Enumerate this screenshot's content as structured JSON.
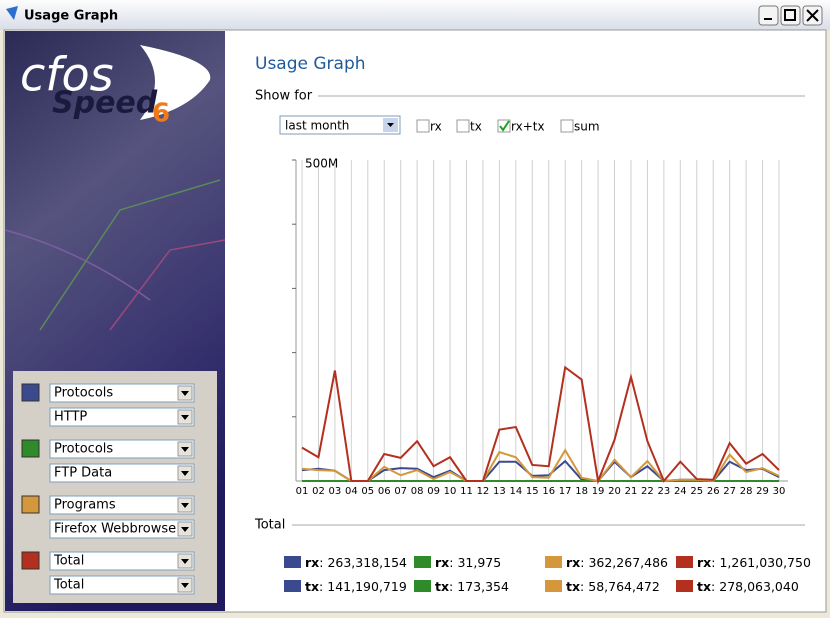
{
  "window": {
    "title": "Usage Graph"
  },
  "logo": {
    "brand": "cfos",
    "product": "Speed",
    "version": "6"
  },
  "filters": [
    {
      "group": "Protocols"
    },
    {
      "group": "Protocols"
    },
    {
      "group": "Programs"
    },
    {
      "group": "Total"
    }
  ],
  "page": {
    "heading": "Usage Graph",
    "show_for": "Show for",
    "period": "last month",
    "options": [
      {
        "label": "rx",
        "checked": false
      },
      {
        "label": "tx",
        "checked": false
      },
      {
        "label": "rx+tx",
        "checked": true
      },
      {
        "label": "sum",
        "checked": false
      }
    ],
    "total_heading": "Total",
    "rx_label": "rx",
    "tx_label": "tx",
    "separator": ":"
  },
  "totals": [
    {
      "rx": "263,318,154",
      "tx": "141,190,719"
    },
    {
      "rx": "31,975",
      "tx": "173,354"
    },
    {
      "rx": "362,267,486",
      "tx": "58,764,472"
    },
    {
      "rx": "1,261,030,750",
      "tx": "278,063,040"
    }
  ],
  "chart_data": {
    "type": "line",
    "categories": [
      "01",
      "02",
      "03",
      "04",
      "05",
      "06",
      "07",
      "08",
      "09",
      "10",
      "11",
      "12",
      "13",
      "14",
      "15",
      "16",
      "17",
      "18",
      "19",
      "20",
      "21",
      "22",
      "23",
      "24",
      "25",
      "26",
      "27",
      "28",
      "29",
      "30"
    ],
    "ylim": [
      0,
      500
    ],
    "yticks": [
      {
        "value": 500,
        "label": "500M"
      }
    ],
    "ytick_marks": [
      100,
      200,
      300,
      400
    ],
    "grid": true,
    "series": [
      {
        "name": "HTTP",
        "color": "#3b4a8e",
        "values": [
          17,
          19,
          16,
          0,
          0,
          17,
          20,
          19,
          6,
          16,
          0,
          0,
          30,
          30,
          8,
          9,
          31,
          2,
          0,
          30,
          6,
          23,
          0,
          2,
          2,
          0,
          30,
          17,
          19,
          6
        ]
      },
      {
        "name": "FTP Data",
        "color": "#2f8a2a",
        "values": [
          0,
          0,
          0,
          0,
          0,
          0,
          0,
          0,
          0,
          0,
          0,
          0,
          0,
          0,
          0,
          0,
          0,
          0,
          0,
          0,
          0,
          0,
          0,
          0,
          0,
          0,
          0,
          0,
          0,
          0
        ]
      },
      {
        "name": "Firefox Webbrowse",
        "color": "#d4973c",
        "values": [
          19,
          17,
          16,
          0,
          0,
          22,
          9,
          17,
          3,
          14,
          0,
          0,
          45,
          37,
          6,
          5,
          48,
          5,
          0,
          33,
          6,
          31,
          0,
          2,
          2,
          0,
          41,
          14,
          20,
          8
        ]
      },
      {
        "name": "Total",
        "color": "#b3301f",
        "values": [
          52,
          37,
          172,
          0,
          0,
          42,
          36,
          62,
          23,
          37,
          0,
          0,
          80,
          84,
          25,
          23,
          177,
          158,
          0,
          64,
          162,
          62,
          0,
          30,
          3,
          2,
          59,
          27,
          42,
          17
        ]
      }
    ]
  }
}
